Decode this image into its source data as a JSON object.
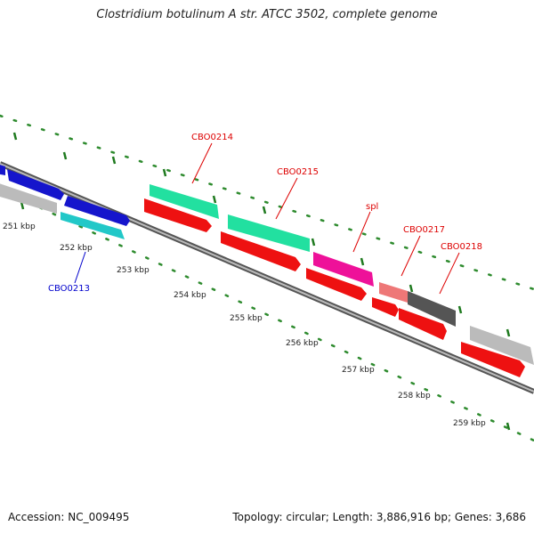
{
  "title": "Clostridium botulinum A str. ATCC 3502, complete genome",
  "footer": {
    "accession": "Accession: NC_009495",
    "summary": "Topology: circular; Length: 3,886,916 bp; Genes: 3,686"
  },
  "colors": {
    "gc_skew_dots": "#2e8b2e",
    "tick": "#1f7a1f",
    "backbone_dark": "#555555",
    "backbone_light": "#bbbbbb",
    "label_red": "#dd0000",
    "label_blue": "#0000cc"
  },
  "scale_labels": [
    "251 kbp",
    "252 kbp",
    "253 kbp",
    "254 kbp",
    "255 kbp",
    "256 kbp",
    "257 kbp",
    "258 kbp",
    "259 kbp"
  ],
  "gene_labels": [
    {
      "text": "CBO0213",
      "color": "#0000cc"
    },
    {
      "text": "CBO0214",
      "color": "#dd0000"
    },
    {
      "text": "CBO0215",
      "color": "#dd0000"
    },
    {
      "text": "spl",
      "color": "#dd0000"
    },
    {
      "text": "CBO0217",
      "color": "#dd0000"
    },
    {
      "text": "CBO0218",
      "color": "#dd0000"
    }
  ],
  "features": [
    {
      "track": "outer",
      "color": "#1515cc",
      "name": "blue-feature"
    },
    {
      "track": "outer",
      "color": "#bbbbbb",
      "name": "gray-feature"
    },
    {
      "track": "outer",
      "color": "#1515cc",
      "name": "blue-feature"
    },
    {
      "track": "inner",
      "color": "#22c8c8",
      "name": "cyan-feature"
    },
    {
      "track": "outer",
      "color": "#22e0a0",
      "name": "teal-feature"
    },
    {
      "track": "inner",
      "color": "#ee1111",
      "name": "red-feature"
    },
    {
      "track": "outer",
      "color": "#22e0a0",
      "name": "teal-feature"
    },
    {
      "track": "inner",
      "color": "#ee1111",
      "name": "red-feature"
    },
    {
      "track": "outer",
      "color": "#ee1199",
      "name": "magenta-feature"
    },
    {
      "track": "inner",
      "color": "#ee1111",
      "name": "red-feature"
    },
    {
      "track": "outer",
      "color": "#ee7777",
      "name": "pink-feature"
    },
    {
      "track": "outer",
      "color": "#555555",
      "name": "dark-gray-feature"
    },
    {
      "track": "inner",
      "color": "#ee1111",
      "name": "red-feature"
    },
    {
      "track": "inner",
      "color": "#ee1111",
      "name": "red-feature"
    },
    {
      "track": "outer",
      "color": "#bbbbbb",
      "name": "gray-feature"
    },
    {
      "track": "inner",
      "color": "#ee1111",
      "name": "red-feature"
    }
  ]
}
